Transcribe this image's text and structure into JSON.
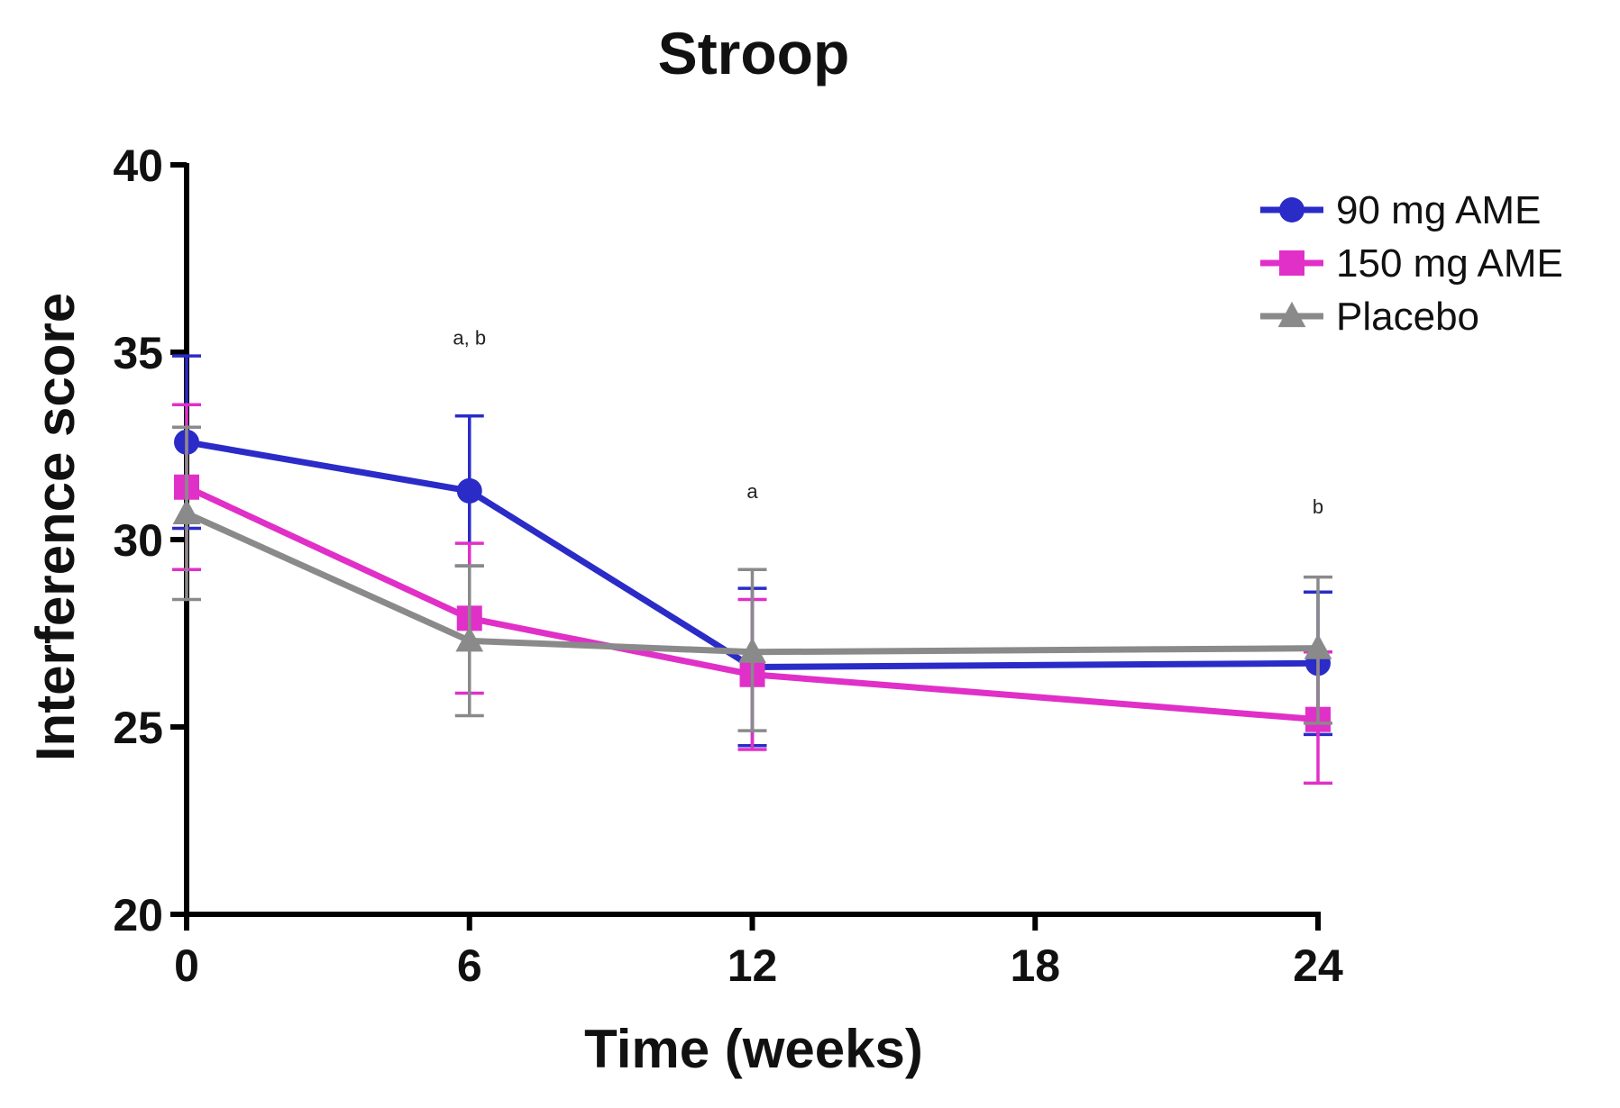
{
  "chart_data": {
    "type": "line",
    "title": "Stroop",
    "xlabel": "Time (weeks)",
    "ylabel": "Interference score",
    "x": [
      0,
      6,
      12,
      24
    ],
    "xticks": [
      "0",
      "6",
      "12",
      "18",
      "24"
    ],
    "xtick_values": [
      0,
      6,
      12,
      18,
      24
    ],
    "yticks": [
      "20",
      "25",
      "30",
      "35",
      "40"
    ],
    "ytick_values": [
      20,
      25,
      30,
      35,
      40
    ],
    "xlim": [
      0,
      24
    ],
    "ylim": [
      20,
      40
    ],
    "grid": false,
    "legend_position": "top-right",
    "series": [
      {
        "name": "90 mg AME",
        "color": "#2b2bc8",
        "marker": "circle",
        "values": [
          32.6,
          31.3,
          26.6,
          26.7
        ],
        "err_upper": [
          34.9,
          33.3,
          28.7,
          28.6
        ],
        "err_lower": [
          30.3,
          29.3,
          24.5,
          24.8
        ]
      },
      {
        "name": "150 mg AME",
        "color": "#e030c8",
        "marker": "square",
        "values": [
          31.4,
          27.9,
          26.4,
          25.2
        ],
        "err_upper": [
          33.6,
          29.9,
          28.4,
          27.0
        ],
        "err_lower": [
          29.2,
          25.9,
          24.4,
          23.5
        ]
      },
      {
        "name": "Placebo",
        "color": "#8a8a8a",
        "marker": "triangle",
        "values": [
          30.7,
          27.3,
          27.0,
          27.1
        ],
        "err_upper": [
          33.0,
          29.3,
          29.2,
          29.0
        ],
        "err_lower": [
          28.4,
          25.3,
          24.9,
          25.1
        ]
      }
    ],
    "annotations": [
      {
        "x": 6,
        "y": 35.2,
        "text": "a, b"
      },
      {
        "x": 12,
        "y": 31.1,
        "text": "a"
      },
      {
        "x": 24,
        "y": 30.7,
        "text": "b"
      }
    ]
  }
}
